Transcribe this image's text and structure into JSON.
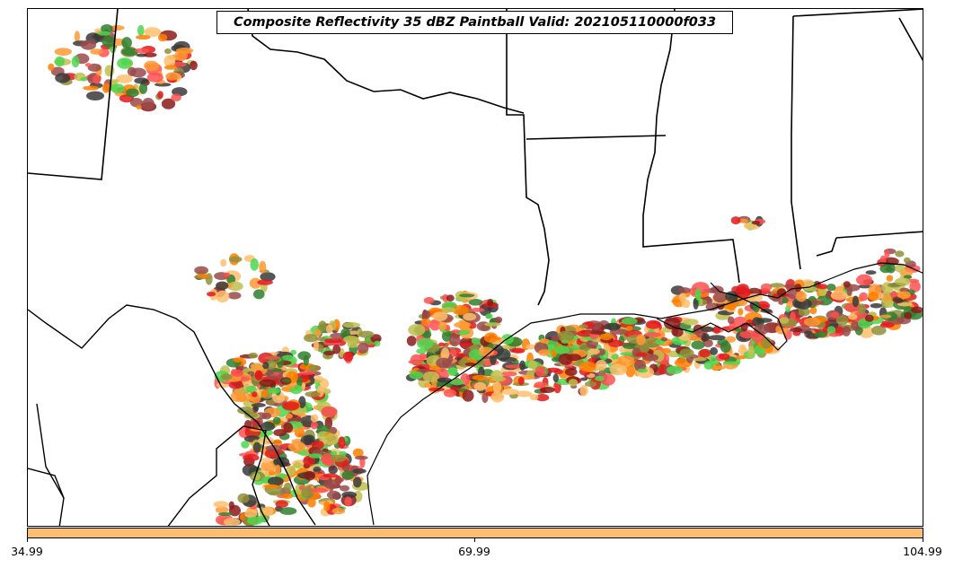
{
  "title": "Composite Reflectivity 35 dBZ Paintball Valid: 202105110000f033",
  "colorbar": {
    "color": "#fdbf6f",
    "ticks": [
      "34.99",
      "69.99",
      "104.99"
    ]
  },
  "ensemble_colors": [
    "#4dd64d",
    "#ff5050",
    "#ff9933",
    "#ff7f00",
    "#e31a1c",
    "#8b1a1a",
    "#9a4a4a",
    "#8f8f3a",
    "#bfbf4f",
    "#2f7f2f",
    "#3a3a3a",
    "#fdbf6f"
  ],
  "basemap": {
    "features": [
      "state-borders",
      "coastline",
      "country-border"
    ]
  }
}
